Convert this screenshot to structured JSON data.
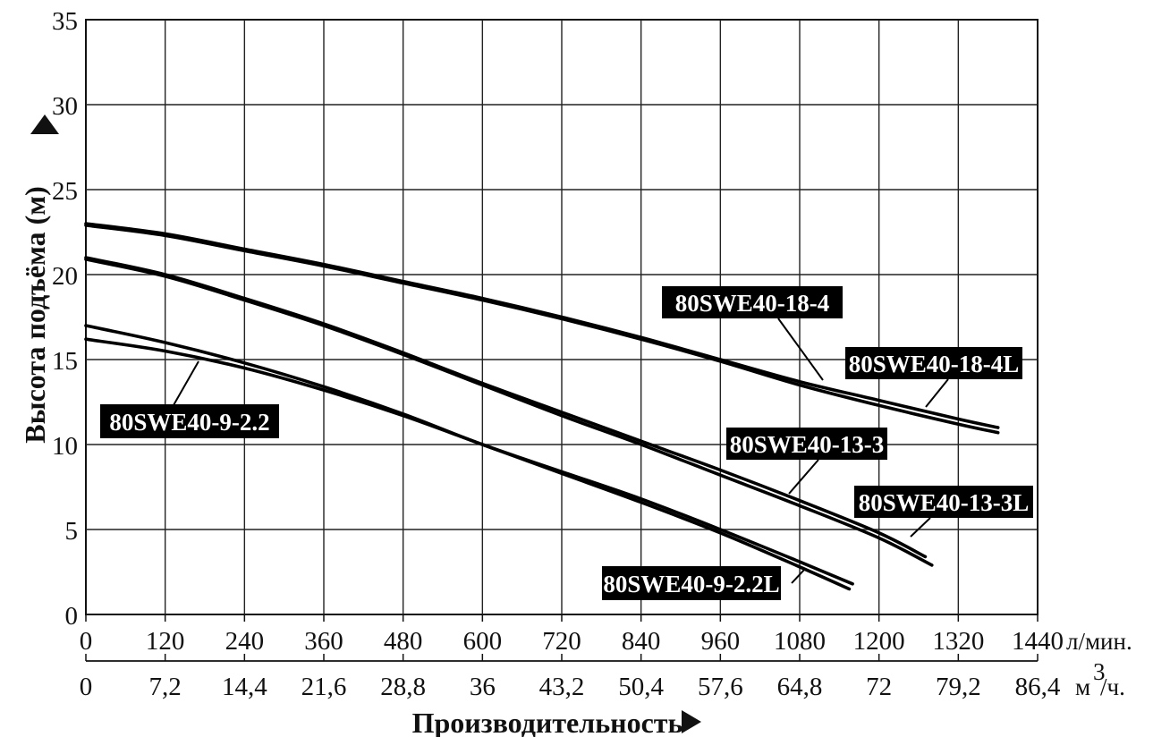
{
  "chart_data": {
    "type": "line",
    "ylabel": "Высота подъёма (м)",
    "xlabel": "Производительность",
    "ylim": [
      0,
      35
    ],
    "y_ticks": [
      "0",
      "5",
      "10",
      "15",
      "20",
      "25",
      "30",
      "35"
    ],
    "xlim": [
      0,
      1440
    ],
    "x_primary_unit": "л/мин.",
    "x_primary_ticks": [
      "0",
      "120",
      "240",
      "360",
      "480",
      "600",
      "720",
      "840",
      "960",
      "1080",
      "1200",
      "1320",
      "1440"
    ],
    "x_secondary_unit": "м",
    "x_secondary_unit_sup": "3",
    "x_secondary_unit_suffix": "/ч.",
    "x_secondary_ticks": [
      "0",
      "7,2",
      "14,4",
      "21,6",
      "28,8",
      "36",
      "43,2",
      "50,4",
      "57,6",
      "64,8",
      "72",
      "79,2",
      "86,4"
    ],
    "grid": true,
    "series": [
      {
        "name": "80SWE40-18-4",
        "x": [
          0,
          120,
          240,
          360,
          480,
          600,
          720,
          840,
          960,
          1080,
          1200,
          1320,
          1380
        ],
        "y": [
          23.0,
          22.4,
          21.5,
          20.6,
          19.6,
          18.6,
          17.5,
          16.3,
          15.0,
          13.7,
          12.6,
          11.5,
          11.0
        ]
      },
      {
        "name": "80SWE40-18-4L",
        "x": [
          0,
          120,
          240,
          360,
          480,
          600,
          720,
          840,
          960,
          1080,
          1200,
          1320,
          1380
        ],
        "y": [
          22.9,
          22.3,
          21.4,
          20.5,
          19.5,
          18.5,
          17.4,
          16.2,
          14.9,
          13.5,
          12.3,
          11.2,
          10.7
        ]
      },
      {
        "name": "80SWE40-13-3",
        "x": [
          0,
          120,
          240,
          360,
          480,
          600,
          720,
          840,
          960,
          1080,
          1200,
          1270
        ],
        "y": [
          21.0,
          20.0,
          18.6,
          17.1,
          15.4,
          13.6,
          11.9,
          10.2,
          8.5,
          6.7,
          4.8,
          3.4
        ]
      },
      {
        "name": "80SWE40-13-3L",
        "x": [
          0,
          120,
          240,
          360,
          480,
          600,
          720,
          840,
          960,
          1080,
          1200,
          1280
        ],
        "y": [
          20.9,
          19.9,
          18.5,
          17.0,
          15.3,
          13.5,
          11.7,
          10.0,
          8.2,
          6.4,
          4.5,
          2.9
        ]
      },
      {
        "name": "80SWE40-9-2.2",
        "x": [
          0,
          120,
          240,
          360,
          480,
          600,
          720,
          840,
          960,
          1080,
          1160
        ],
        "y": [
          17.0,
          16.0,
          14.8,
          13.4,
          11.8,
          10.0,
          8.4,
          6.8,
          5.0,
          3.1,
          1.8
        ]
      },
      {
        "name": "80SWE40-9-2.2L",
        "x": [
          0,
          120,
          240,
          360,
          480,
          600,
          720,
          840,
          960,
          1080,
          1155
        ],
        "y": [
          16.2,
          15.5,
          14.5,
          13.2,
          11.7,
          10.0,
          8.3,
          6.6,
          4.8,
          2.8,
          1.5
        ]
      }
    ]
  }
}
